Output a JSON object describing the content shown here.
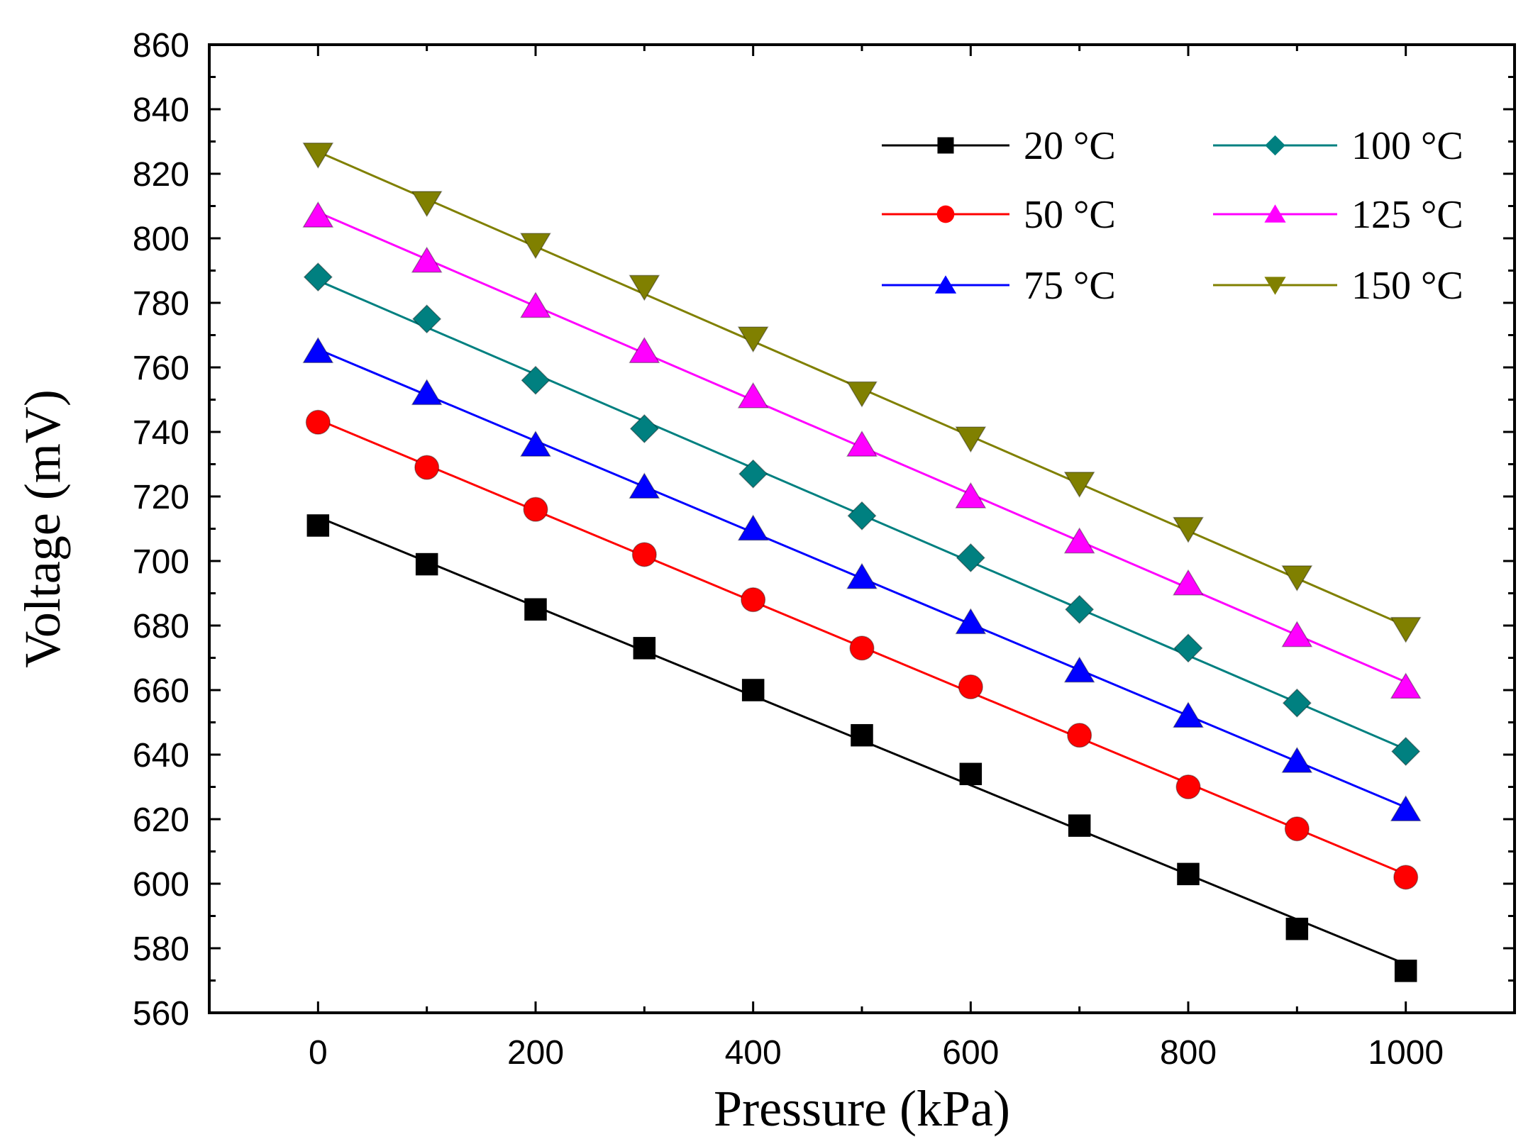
{
  "chart_data": {
    "type": "line",
    "xlabel": "Pressure (kPa)",
    "ylabel": "Voltage (mV)",
    "xlim": [
      -100,
      1100
    ],
    "ylim": [
      560,
      860
    ],
    "xticks": [
      0,
      200,
      400,
      600,
      800,
      1000
    ],
    "yticks": [
      560,
      580,
      600,
      620,
      640,
      660,
      680,
      700,
      720,
      740,
      760,
      780,
      800,
      820,
      840,
      860
    ],
    "grid": false,
    "legend_position": "top-right",
    "x": [
      0,
      100,
      200,
      300,
      400,
      500,
      600,
      700,
      800,
      900,
      1000
    ],
    "series": [
      {
        "name": "20 °C",
        "color": "#000000",
        "marker": "square",
        "values": [
          711,
          699,
          685,
          673,
          660,
          646,
          634,
          618,
          603,
          586,
          573
        ]
      },
      {
        "name": "50 °C",
        "color": "#ff0000",
        "marker": "circle",
        "values": [
          743,
          729,
          716,
          702,
          688,
          673,
          661,
          646,
          630,
          617,
          602
        ]
      },
      {
        "name": "75 °C",
        "color": "#0000ff",
        "marker": "triangle-up",
        "values": [
          765,
          752,
          736,
          723,
          710,
          695,
          681,
          666,
          652,
          638,
          623
        ]
      },
      {
        "name": "100 °C",
        "color": "#008080",
        "marker": "diamond",
        "values": [
          788,
          775,
          756,
          741,
          727,
          714,
          701,
          685,
          673,
          656,
          641
        ]
      },
      {
        "name": "125 °C",
        "color": "#ff00ff",
        "marker": "triangle-up",
        "values": [
          807,
          793,
          779,
          765,
          751,
          736,
          720,
          706,
          693,
          677,
          661
        ]
      },
      {
        "name": "150 °C",
        "color": "#808000",
        "marker": "triangle-down",
        "values": [
          826,
          811,
          798,
          785,
          769,
          752,
          738,
          724,
          710,
          695,
          679
        ]
      }
    ]
  }
}
